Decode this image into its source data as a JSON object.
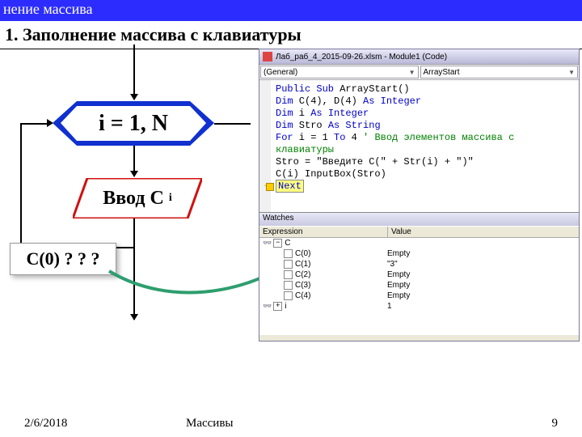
{
  "titlebar": "нение массива",
  "subtitle": "1. Заполнение массива с клавиатуры",
  "flowchart": {
    "hex_label": "i = 1, N",
    "input_label": "Ввод C",
    "input_sub": "i",
    "hex_fill": "#1030d0",
    "hex_text_bg": "#ffffff",
    "para_border": "#d01010"
  },
  "c0box": "С(0) ? ? ?",
  "code_window": {
    "title": "Лаб_раб_4_2015-09-26.xlsm - Module1 (Code)",
    "dd_left": "(General)",
    "dd_right": "ArrayStart",
    "lines": {
      "l1a": "Public Sub",
      "l1b": " ArrayStart()",
      "l2a": "Dim",
      "l2b": " C(4), D(4) ",
      "l2c": "As Integer",
      "l3a": "Dim",
      "l3b": " i ",
      "l3c": "As Integer",
      "l4a": "Dim",
      "l4b": " Stro ",
      "l4c": "As String",
      "l5a": "For",
      "l5b": " i = 1 ",
      "l5c": "To",
      "l5d": " 4 ",
      "l5e": "' Ввод элементов массива с клавиатуры",
      "l6": "    Stro = \"Введите C(\" + Str(i) + \")\"",
      "l7": "    C(i)     InputBox(Stro)",
      "l8": "Next"
    }
  },
  "watches": {
    "title": "Watches",
    "col_expr": "Expression",
    "col_val": "Value",
    "rows": [
      {
        "exp": "C",
        "val": "",
        "top": true
      },
      {
        "exp": "C(0)",
        "val": "Empty"
      },
      {
        "exp": "C(1)",
        "val": "\"3\""
      },
      {
        "exp": "C(2)",
        "val": "Empty"
      },
      {
        "exp": "C(3)",
        "val": "Empty"
      },
      {
        "exp": "C(4)",
        "val": "Empty"
      },
      {
        "exp": "i",
        "val": "1",
        "top": true
      }
    ]
  },
  "footer": {
    "date": "2/6/2018",
    "center": "Массивы",
    "page": "9"
  },
  "colors": {
    "titlebar_bg": "#2c2cff",
    "arrow_green": "#2e9e6f"
  }
}
